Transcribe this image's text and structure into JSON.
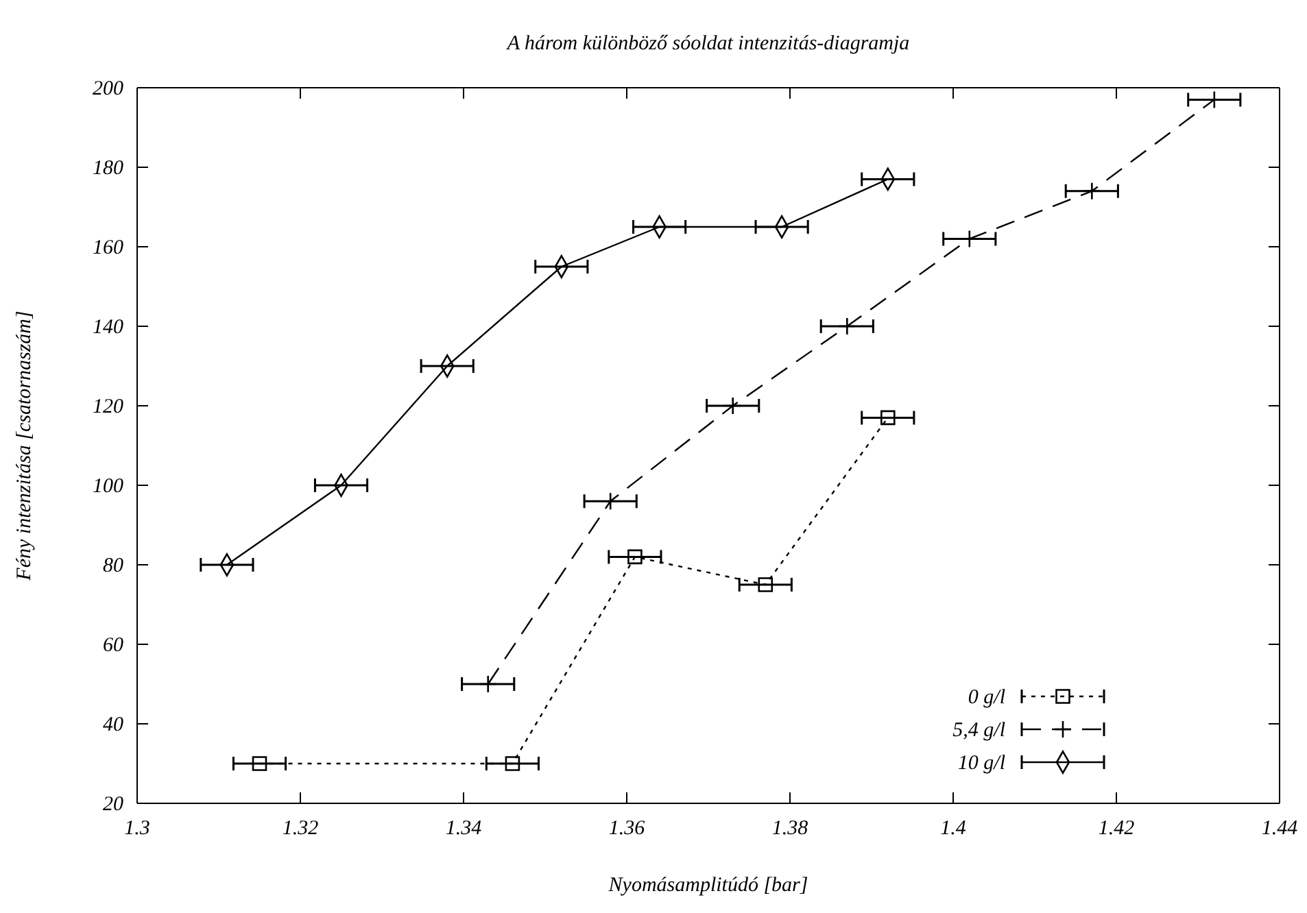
{
  "chart_data": {
    "type": "line",
    "title": "A három különböző sóoldat intenzitás-diagramja",
    "xlabel": "Nyomásamplitúdó [bar]",
    "ylabel": "Fény intenzitása [csatornaszám]",
    "xlim": [
      1.3,
      1.44
    ],
    "xticks": [
      1.3,
      1.32,
      1.34,
      1.36,
      1.38,
      1.4,
      1.42,
      1.44
    ],
    "ylim": [
      20,
      200
    ],
    "yticks": [
      20,
      40,
      60,
      80,
      100,
      120,
      140,
      160,
      180,
      200
    ],
    "grid": false,
    "legend": "bottom right",
    "series": [
      {
        "name": "0 g/l",
        "color": "#000000",
        "marker": "square",
        "line_style": "dotted",
        "x": [
          1.315,
          1.346,
          1.361,
          1.377,
          1.392
        ],
        "values": [
          30,
          30,
          82,
          75,
          117
        ],
        "xerrors": [
          0.0032,
          0.0032,
          0.0032,
          0.0032,
          0.0032
        ]
      },
      {
        "name": "5,4 g/l",
        "color": "#000000",
        "marker": "cross",
        "line_style": "dashed",
        "x": [
          1.343,
          1.358,
          1.373,
          1.387,
          1.402,
          1.417,
          1.432
        ],
        "values": [
          50,
          96,
          120,
          140,
          162,
          174,
          197
        ],
        "xerrors": [
          0.0032,
          0.0032,
          0.0032,
          0.0032,
          0.0032,
          0.0032,
          0.0032
        ]
      },
      {
        "name": "10 g/l",
        "color": "#000000",
        "marker": "diamond",
        "line_style": "solid",
        "x": [
          1.311,
          1.325,
          1.338,
          1.352,
          1.364,
          1.379,
          1.392
        ],
        "values": [
          80,
          100,
          130,
          155,
          165,
          165,
          177
        ],
        "xerrors": [
          0.0032,
          0.0032,
          0.0032,
          0.0032,
          0.0032,
          0.0032,
          0.0032
        ]
      }
    ]
  }
}
